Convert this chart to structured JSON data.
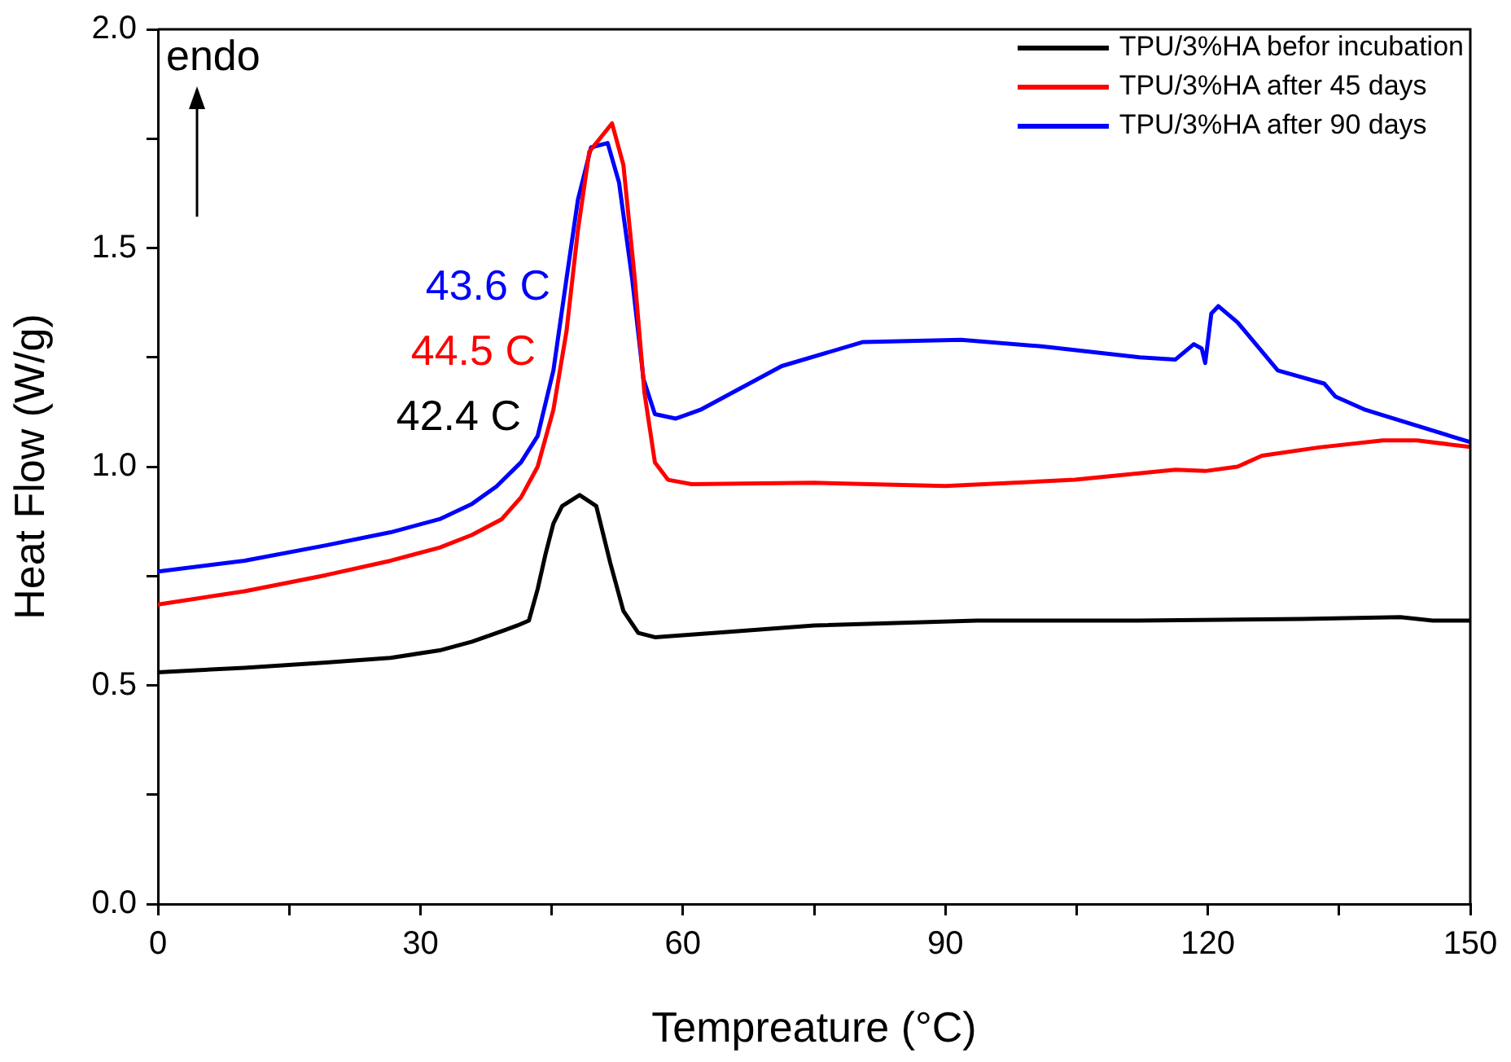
{
  "chart_data": {
    "type": "line",
    "xlabel": "Tempreature (°C)",
    "ylabel": "Heat Flow (W/g)",
    "xlim": [
      0,
      150
    ],
    "ylim": [
      0,
      2.0
    ],
    "xticks": [
      0,
      {
        "value": 15,
        "label": null
      },
      30,
      {
        "value": 45,
        "label": null
      },
      60,
      {
        "value": 75,
        "label": null
      },
      90,
      {
        "value": 105,
        "label": null
      },
      120,
      {
        "value": 135,
        "label": null
      },
      150
    ],
    "yticks": [
      {
        "value": 0,
        "label": "0.0"
      },
      {
        "value": 0.25,
        "label": null
      },
      0.5,
      {
        "value": 0.75,
        "label": null
      },
      {
        "value": 1.0,
        "label": "1.0"
      },
      {
        "value": 1.25,
        "label": null
      },
      1.5,
      {
        "value": 1.75,
        "label": null
      },
      {
        "value": 2.0,
        "label": "2.0"
      }
    ],
    "grid": false,
    "legend": "top right",
    "marker": "none",
    "line_style": "solid",
    "annotations": [
      "42.4 C",
      "44.5 C",
      "43.6 C",
      "endo"
    ],
    "series": [
      {
        "name": "TPU/3%HA befor incubation",
        "color": "#000000",
        "x": [
          0,
          9.9,
          19.2,
          26.6,
          32.2,
          35.9,
          39.6,
          41.1,
          42.4,
          43.4,
          44.3,
          45.2,
          46.2,
          48.2,
          50.1,
          51.7,
          53.2,
          54.9,
          56.8,
          63.8,
          75,
          93.6,
          112,
          130.8,
          142,
          145.7,
          150
        ],
        "values": [
          0.53,
          0.54,
          0.552,
          0.563,
          0.58,
          0.6,
          0.626,
          0.637,
          0.648,
          0.72,
          0.8,
          0.87,
          0.91,
          0.935,
          0.91,
          0.78,
          0.67,
          0.62,
          0.61,
          0.62,
          0.637,
          0.648,
          0.648,
          0.652,
          0.656,
          0.648,
          0.648
        ]
      },
      {
        "name": "TPU/3%HA after 45 days",
        "color": "#ff0000",
        "x": [
          0,
          9.9,
          19.2,
          26.6,
          32.2,
          35.9,
          39.3,
          41.5,
          43.4,
          45.2,
          46.7,
          48,
          49.3,
          51.9,
          53.2,
          54.5,
          55.6,
          56.8,
          58.3,
          61,
          75,
          90,
          104.8,
          116.3,
          119.7,
          123.4,
          126.2,
          132.7,
          140,
          143.9,
          150
        ],
        "values": [
          0.685,
          0.715,
          0.752,
          0.785,
          0.815,
          0.844,
          0.88,
          0.93,
          1.0,
          1.13,
          1.31,
          1.54,
          1.72,
          1.785,
          1.69,
          1.43,
          1.17,
          1.01,
          0.97,
          0.96,
          0.963,
          0.956,
          0.97,
          0.993,
          0.99,
          1.0,
          1.025,
          1.044,
          1.06,
          1.06,
          1.045
        ]
      },
      {
        "name": "TPU/3%HA after 90 days",
        "color": "#0000ff",
        "x": [
          0,
          9.9,
          19.2,
          26.6,
          32.2,
          35.9,
          38.7,
          41.5,
          43.4,
          45.2,
          46.7,
          48,
          49.5,
          51.4,
          52.7,
          54.2,
          55.5,
          56.8,
          59.2,
          62,
          71.3,
          80.6,
          91.8,
          101,
          112.2,
          116.3,
          118.4,
          119.3,
          119.7,
          120.4,
          121.2,
          123.4,
          128,
          133.3,
          134.6,
          138,
          150
        ],
        "values": [
          0.76,
          0.785,
          0.82,
          0.85,
          0.88,
          0.915,
          0.955,
          1.01,
          1.07,
          1.22,
          1.43,
          1.61,
          1.73,
          1.74,
          1.65,
          1.43,
          1.2,
          1.12,
          1.11,
          1.13,
          1.23,
          1.285,
          1.29,
          1.275,
          1.25,
          1.245,
          1.28,
          1.27,
          1.237,
          1.35,
          1.367,
          1.33,
          1.22,
          1.19,
          1.16,
          1.13,
          1.056
        ]
      }
    ]
  }
}
